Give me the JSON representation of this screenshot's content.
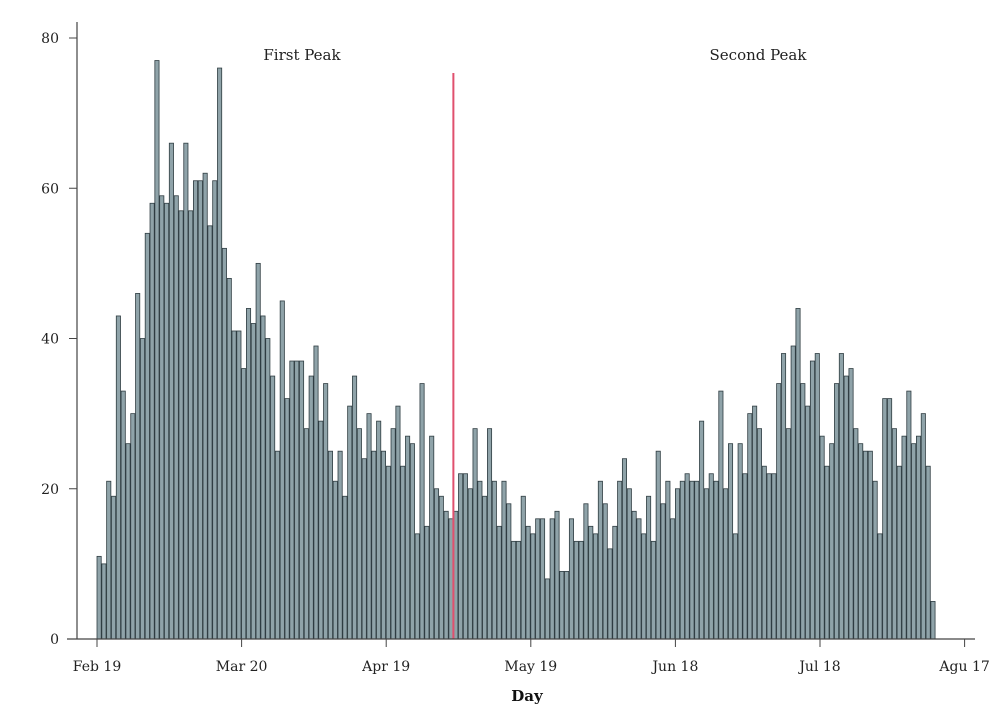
{
  "chart_data": {
    "type": "bar",
    "xlabel": "Day",
    "ylabel": "",
    "ylim": [
      0,
      80
    ],
    "yticks": [
      0,
      20,
      40,
      60,
      80
    ],
    "xticks": [
      "Feb 19",
      "Mar 20",
      "Apr 19",
      "May 19",
      "Jun 18",
      "Jul 18",
      "Agu 17"
    ],
    "annotations": [
      "First Peak",
      "Second Peak"
    ],
    "divider_after_day": 74,
    "values": [
      11,
      10,
      21,
      19,
      43,
      33,
      26,
      30,
      46,
      40,
      54,
      58,
      77,
      59,
      58,
      66,
      59,
      57,
      66,
      57,
      61,
      61,
      62,
      55,
      61,
      76,
      52,
      48,
      41,
      41,
      36,
      44,
      42,
      50,
      43,
      40,
      35,
      25,
      45,
      32,
      37,
      37,
      37,
      28,
      35,
      39,
      29,
      34,
      25,
      21,
      25,
      19,
      31,
      35,
      28,
      24,
      30,
      25,
      29,
      25,
      23,
      28,
      31,
      23,
      27,
      26,
      14,
      34,
      15,
      27,
      20,
      19,
      17,
      16,
      17,
      22,
      22,
      20,
      28,
      21,
      19,
      28,
      21,
      15,
      21,
      18,
      13,
      13,
      19,
      15,
      14,
      16,
      16,
      8,
      16,
      17,
      9,
      9,
      16,
      13,
      13,
      18,
      15,
      14,
      21,
      18,
      12,
      15,
      21,
      24,
      20,
      17,
      16,
      14,
      19,
      13,
      25,
      18,
      21,
      16,
      20,
      21,
      22,
      21,
      21,
      29,
      20,
      22,
      21,
      33,
      20,
      26,
      14,
      26,
      22,
      30,
      31,
      28,
      23,
      22,
      22,
      34,
      38,
      28,
      39,
      44,
      34,
      31,
      37,
      38,
      27,
      23,
      26,
      34,
      38,
      35,
      36,
      28,
      26,
      25,
      25,
      21,
      14,
      32,
      32,
      28,
      23,
      27,
      33,
      26,
      27,
      30,
      23,
      5
    ]
  }
}
